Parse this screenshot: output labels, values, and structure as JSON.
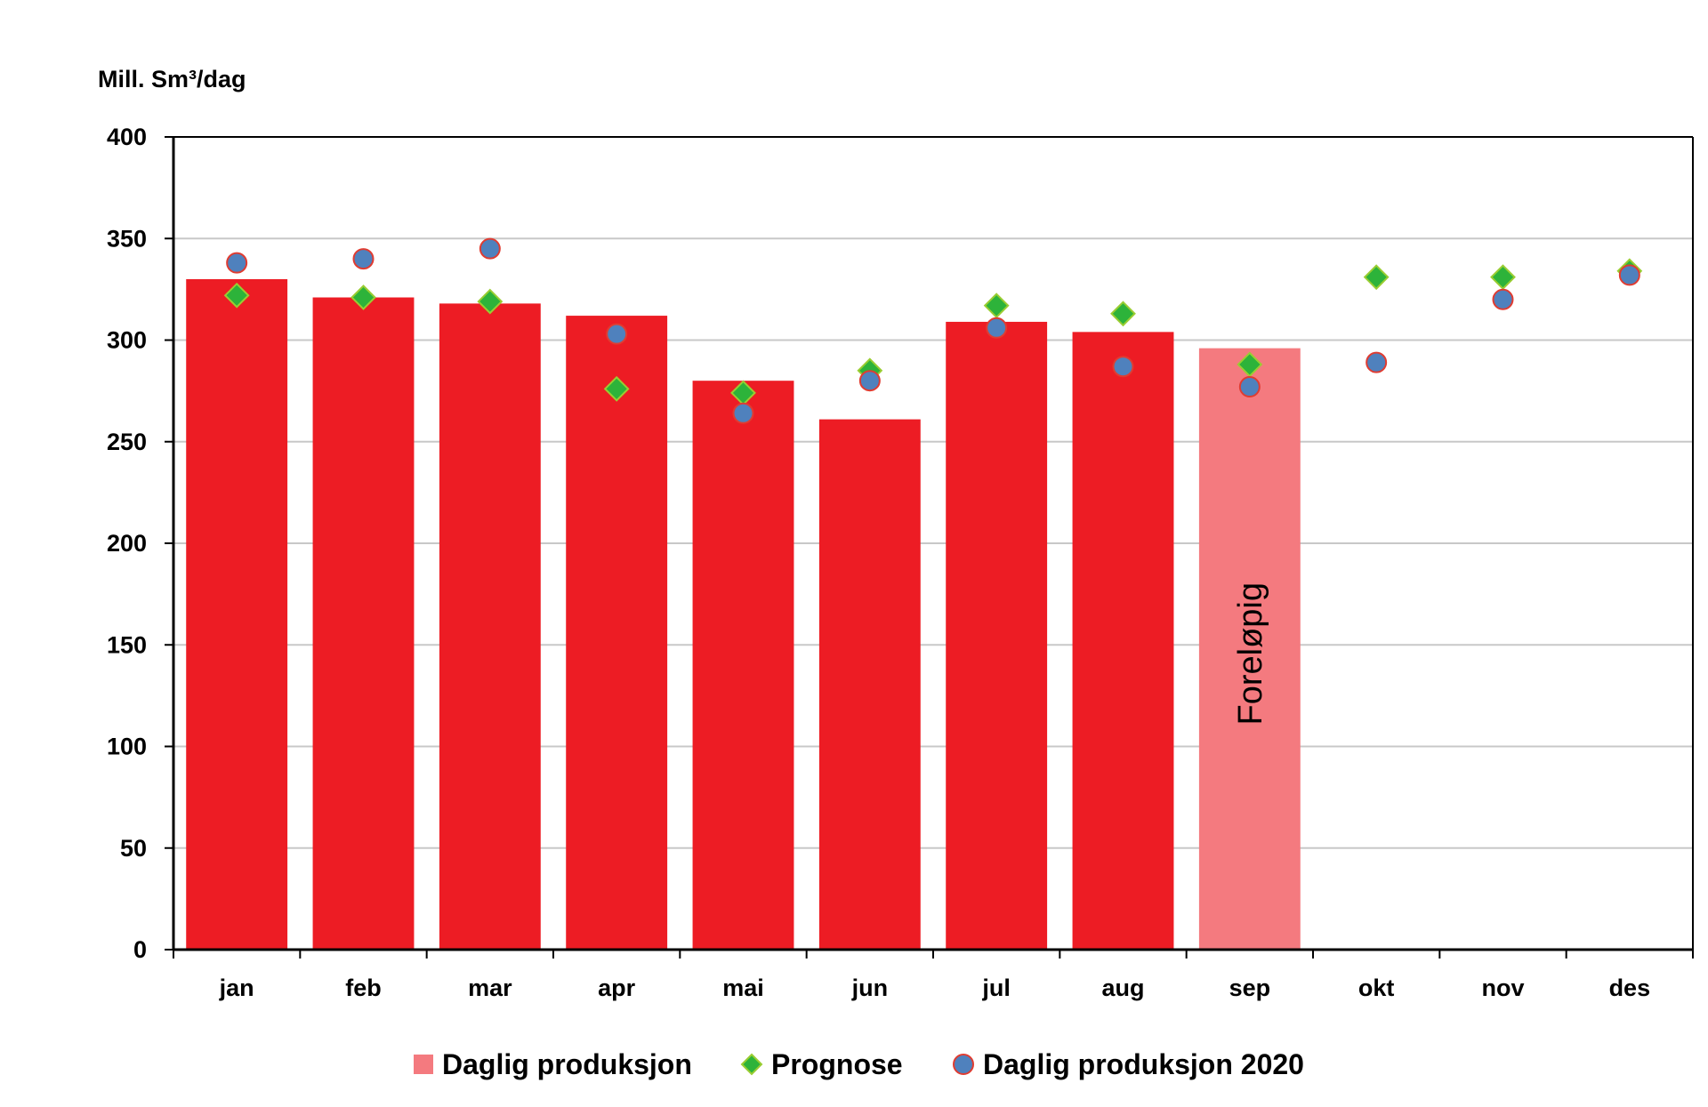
{
  "chart_data": {
    "type": "bar",
    "ylabel": "Mill. Sm³/dag",
    "ylim": [
      0,
      400
    ],
    "yticks": [
      "0",
      "50",
      "100",
      "150",
      "200",
      "250",
      "300",
      "350",
      "400"
    ],
    "grid": true,
    "legend_position": "bottom",
    "categories": [
      "jan",
      "feb",
      "mar",
      "apr",
      "mai",
      "jun",
      "jul",
      "aug",
      "sep",
      "okt",
      "nov",
      "des"
    ],
    "series": [
      {
        "name": "Daglig produksjon",
        "kind": "bar",
        "values": [
          330,
          321,
          318,
          312,
          280,
          261,
          309,
          304,
          296,
          null,
          null,
          null
        ],
        "color": "#ed1c24",
        "preliminary_color": "#f47a7f",
        "preliminary_index": 8
      },
      {
        "name": "Prognose",
        "kind": "marker-diamond",
        "values": [
          322,
          321,
          319,
          276,
          274,
          285,
          317,
          313,
          288,
          331,
          331,
          334
        ],
        "color": "#2db33a"
      },
      {
        "name": "Daglig produksjon 2020",
        "kind": "marker-circle",
        "values": [
          338,
          340,
          345,
          303,
          264,
          280,
          306,
          287,
          277,
          289,
          320,
          332
        ],
        "color": "#4f81bd"
      }
    ],
    "annotations": [
      {
        "text": "Foreløpig",
        "category": "sep"
      }
    ]
  }
}
